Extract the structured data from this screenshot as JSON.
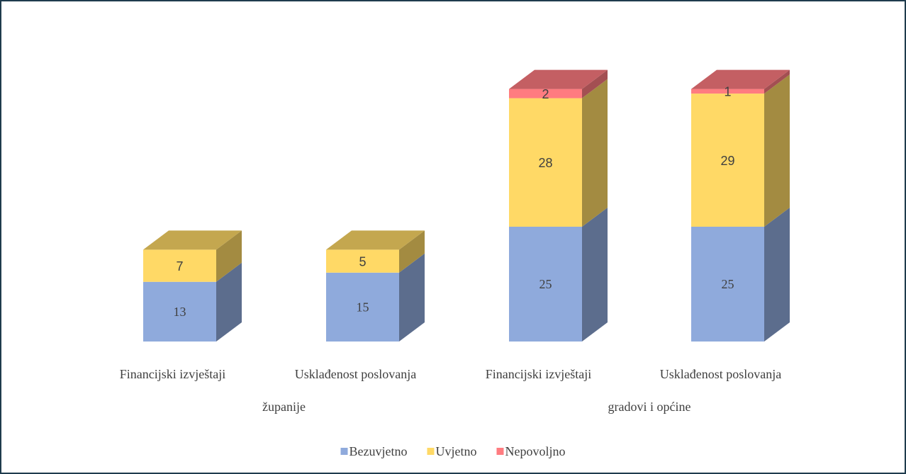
{
  "chart_data": {
    "type": "bar",
    "stacked": true,
    "three_d": true,
    "categories": [
      "Financijski izvještaji",
      "Usklađenost poslovanja",
      "Financijski izvještaji",
      "Usklađenost poslovanja"
    ],
    "groups": [
      "županije",
      "gradovi i općine"
    ],
    "series": [
      {
        "name": "Bezuvjetno",
        "color": "#8faadc",
        "values": [
          13,
          15,
          25,
          25
        ]
      },
      {
        "name": "Uvjetno",
        "color": "#ffd966",
        "values": [
          7,
          5,
          28,
          29
        ]
      },
      {
        "name": "Nepovoljno",
        "color": "#ff7c80",
        "values": [
          null,
          null,
          2,
          1
        ]
      }
    ],
    "legend": "bottom"
  }
}
